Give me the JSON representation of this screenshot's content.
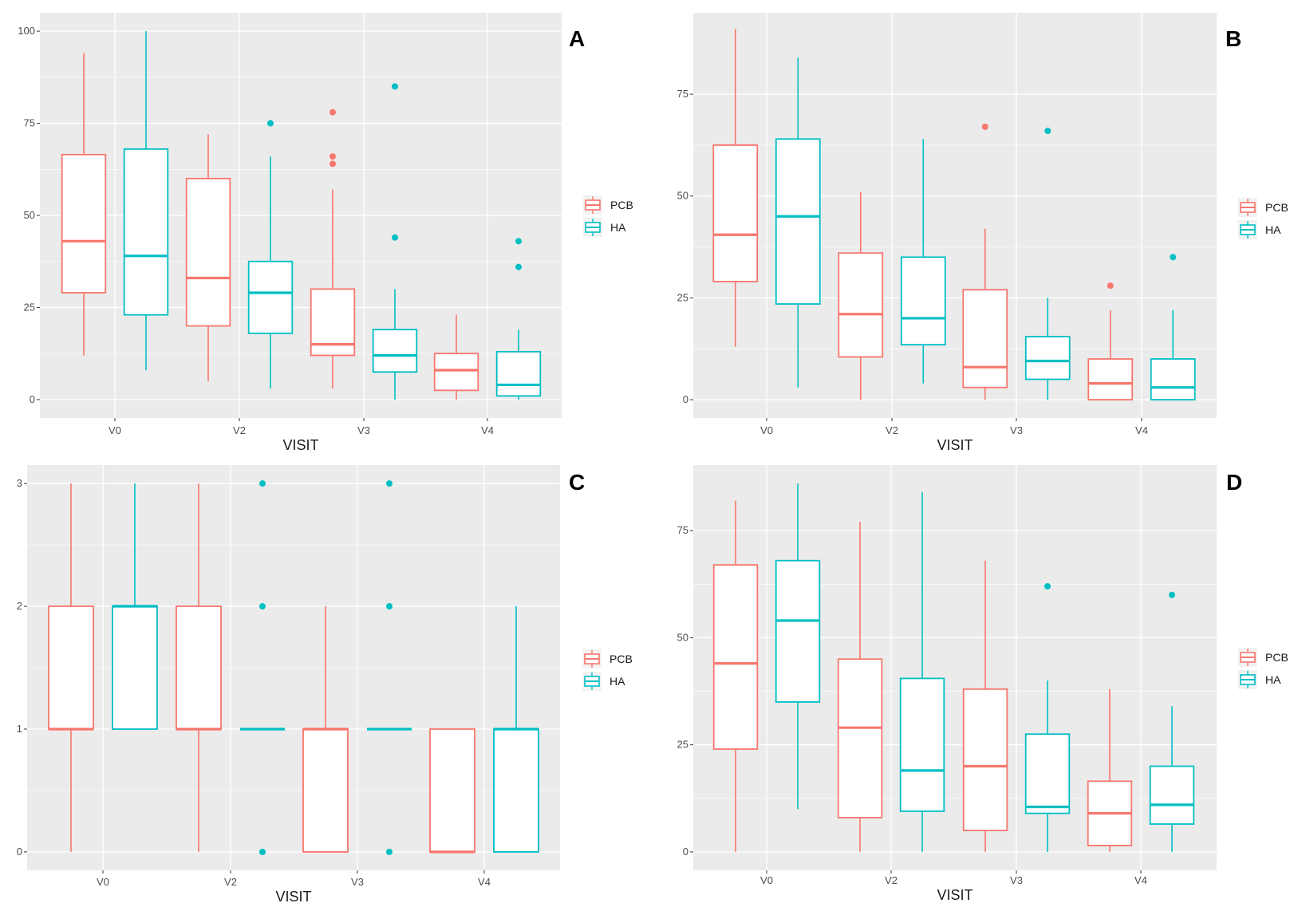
{
  "colors": {
    "PCB": "#f8766d",
    "HA": "#00bfc4",
    "panel_bg": "#ebebeb",
    "grid": "#ffffff"
  },
  "chart_data": [
    {
      "id": "A",
      "panel_label": "A",
      "type": "boxplot",
      "xlabel": "VISIT",
      "ylabel": "",
      "categories": [
        "V0",
        "V2",
        "V3",
        "V4"
      ],
      "ylim": [
        -5,
        105
      ],
      "yticks": [
        0,
        25,
        50,
        75,
        100
      ],
      "ytick_labels": [
        "0",
        "25",
        "50",
        "75",
        "100"
      ],
      "legend": {
        "position": "right",
        "entries": [
          "PCB",
          "HA"
        ]
      },
      "series": [
        {
          "name": "PCB",
          "boxes": [
            {
              "category": "V0",
              "lo": 12,
              "q1": 29,
              "median": 43,
              "q3": 66.5,
              "hi": 94,
              "outliers": []
            },
            {
              "category": "V2",
              "lo": 5,
              "q1": 20,
              "median": 33,
              "q3": 60,
              "hi": 72,
              "outliers": []
            },
            {
              "category": "V3",
              "lo": 3,
              "q1": 12,
              "median": 15,
              "q3": 30,
              "hi": 57,
              "outliers": [
                64,
                66,
                78
              ]
            },
            {
              "category": "V4",
              "lo": 0,
              "q1": 2.5,
              "median": 8,
              "q3": 12.5,
              "hi": 23,
              "outliers": []
            }
          ]
        },
        {
          "name": "HA",
          "boxes": [
            {
              "category": "V0",
              "lo": 8,
              "q1": 23,
              "median": 39,
              "q3": 68,
              "hi": 100,
              "outliers": []
            },
            {
              "category": "V2",
              "lo": 3,
              "q1": 18,
              "median": 29,
              "q3": 37.5,
              "hi": 66,
              "outliers": [
                75
              ]
            },
            {
              "category": "V3",
              "lo": 0,
              "q1": 7.5,
              "median": 12,
              "q3": 19,
              "hi": 30,
              "outliers": [
                44,
                85
              ]
            },
            {
              "category": "V4",
              "lo": 0,
              "q1": 1,
              "median": 4,
              "q3": 13,
              "hi": 19,
              "outliers": [
                36,
                43
              ]
            }
          ]
        }
      ]
    },
    {
      "id": "B",
      "panel_label": "B",
      "type": "boxplot",
      "xlabel": "VISIT",
      "ylabel": "",
      "categories": [
        "V0",
        "V2",
        "V3",
        "V4"
      ],
      "ylim": [
        -4.5,
        95
      ],
      "yticks": [
        0,
        25,
        50,
        75
      ],
      "ytick_labels": [
        "0",
        "25",
        "50",
        "75"
      ],
      "legend": {
        "position": "right",
        "entries": [
          "PCB",
          "HA"
        ]
      },
      "series": [
        {
          "name": "PCB",
          "boxes": [
            {
              "category": "V0",
              "lo": 13,
              "q1": 29,
              "median": 40.5,
              "q3": 62.5,
              "hi": 91,
              "outliers": []
            },
            {
              "category": "V2",
              "lo": 0,
              "q1": 10.5,
              "median": 21,
              "q3": 36,
              "hi": 51,
              "outliers": []
            },
            {
              "category": "V3",
              "lo": 0,
              "q1": 3,
              "median": 8,
              "q3": 27,
              "hi": 42,
              "outliers": [
                67
              ]
            },
            {
              "category": "V4",
              "lo": 0,
              "q1": 0,
              "median": 4,
              "q3": 10,
              "hi": 22,
              "outliers": [
                28
              ]
            }
          ]
        },
        {
          "name": "HA",
          "boxes": [
            {
              "category": "V0",
              "lo": 3,
              "q1": 23.5,
              "median": 45,
              "q3": 64,
              "hi": 84,
              "outliers": []
            },
            {
              "category": "V2",
              "lo": 4,
              "q1": 13.5,
              "median": 20,
              "q3": 35,
              "hi": 64,
              "outliers": []
            },
            {
              "category": "V3",
              "lo": 0,
              "q1": 5,
              "median": 9.5,
              "q3": 15.5,
              "hi": 25,
              "outliers": [
                66
              ]
            },
            {
              "category": "V4",
              "lo": 0,
              "q1": 0,
              "median": 3,
              "q3": 10,
              "hi": 22,
              "outliers": [
                35
              ]
            }
          ]
        }
      ]
    },
    {
      "id": "C",
      "panel_label": "C",
      "type": "boxplot",
      "xlabel": "VISIT",
      "ylabel": "",
      "categories": [
        "V0",
        "V2",
        "V3",
        "V4"
      ],
      "ylim": [
        -0.15,
        3.15
      ],
      "yticks": [
        0,
        1,
        2,
        3
      ],
      "ytick_labels": [
        "0",
        "1",
        "2",
        "3"
      ],
      "legend": {
        "position": "right",
        "entries": [
          "PCB",
          "HA"
        ]
      },
      "series": [
        {
          "name": "PCB",
          "boxes": [
            {
              "category": "V0",
              "lo": 0,
              "q1": 1,
              "median": 1,
              "q3": 2,
              "hi": 3,
              "outliers": []
            },
            {
              "category": "V2",
              "lo": 0,
              "q1": 1,
              "median": 1,
              "q3": 2,
              "hi": 3,
              "outliers": []
            },
            {
              "category": "V3",
              "lo": 0,
              "q1": 0,
              "median": 1,
              "q3": 1,
              "hi": 2,
              "outliers": []
            },
            {
              "category": "V4",
              "lo": 0,
              "q1": 0,
              "median": 0,
              "q3": 1,
              "hi": 1,
              "outliers": []
            }
          ]
        },
        {
          "name": "HA",
          "boxes": [
            {
              "category": "V0",
              "lo": 1,
              "q1": 1,
              "median": 2,
              "q3": 2,
              "hi": 3,
              "outliers": []
            },
            {
              "category": "V2",
              "lo": 1,
              "q1": 1,
              "median": 1,
              "q3": 1,
              "hi": 1,
              "outliers": [
                0,
                2,
                3
              ]
            },
            {
              "category": "V3",
              "lo": 1,
              "q1": 1,
              "median": 1,
              "q3": 1,
              "hi": 1,
              "outliers": [
                0,
                2,
                3
              ]
            },
            {
              "category": "V4",
              "lo": 0,
              "q1": 0,
              "median": 1,
              "q3": 1,
              "hi": 2,
              "outliers": []
            }
          ]
        }
      ]
    },
    {
      "id": "D",
      "panel_label": "D",
      "type": "boxplot",
      "xlabel": "VISIT",
      "ylabel": "",
      "categories": [
        "V0",
        "V2",
        "V3",
        "V4"
      ],
      "ylim": [
        -4.3,
        90.3
      ],
      "yticks": [
        0,
        25,
        50,
        75
      ],
      "ytick_labels": [
        "0",
        "25",
        "50",
        "75"
      ],
      "legend": {
        "position": "right",
        "entries": [
          "PCB",
          "HA"
        ]
      },
      "series": [
        {
          "name": "PCB",
          "boxes": [
            {
              "category": "V0",
              "lo": 0,
              "q1": 24,
              "median": 44,
              "q3": 67,
              "hi": 82,
              "outliers": []
            },
            {
              "category": "V2",
              "lo": 0,
              "q1": 8,
              "median": 29,
              "q3": 45,
              "hi": 77,
              "outliers": []
            },
            {
              "category": "V3",
              "lo": 0,
              "q1": 5,
              "median": 20,
              "q3": 38,
              "hi": 68,
              "outliers": []
            },
            {
              "category": "V4",
              "lo": 0,
              "q1": 1.5,
              "median": 9,
              "q3": 16.5,
              "hi": 38,
              "outliers": []
            }
          ]
        },
        {
          "name": "HA",
          "boxes": [
            {
              "category": "V0",
              "lo": 10,
              "q1": 35,
              "median": 54,
              "q3": 68,
              "hi": 86,
              "outliers": []
            },
            {
              "category": "V2",
              "lo": 0,
              "q1": 9.5,
              "median": 19,
              "q3": 40.5,
              "hi": 84,
              "outliers": []
            },
            {
              "category": "V3",
              "lo": 0,
              "q1": 9,
              "median": 10.5,
              "q3": 27.5,
              "hi": 40,
              "outliers": [
                62
              ]
            },
            {
              "category": "V4",
              "lo": 0,
              "q1": 6.5,
              "median": 11,
              "q3": 20,
              "hi": 34,
              "outliers": [
                60
              ]
            }
          ]
        }
      ]
    }
  ]
}
